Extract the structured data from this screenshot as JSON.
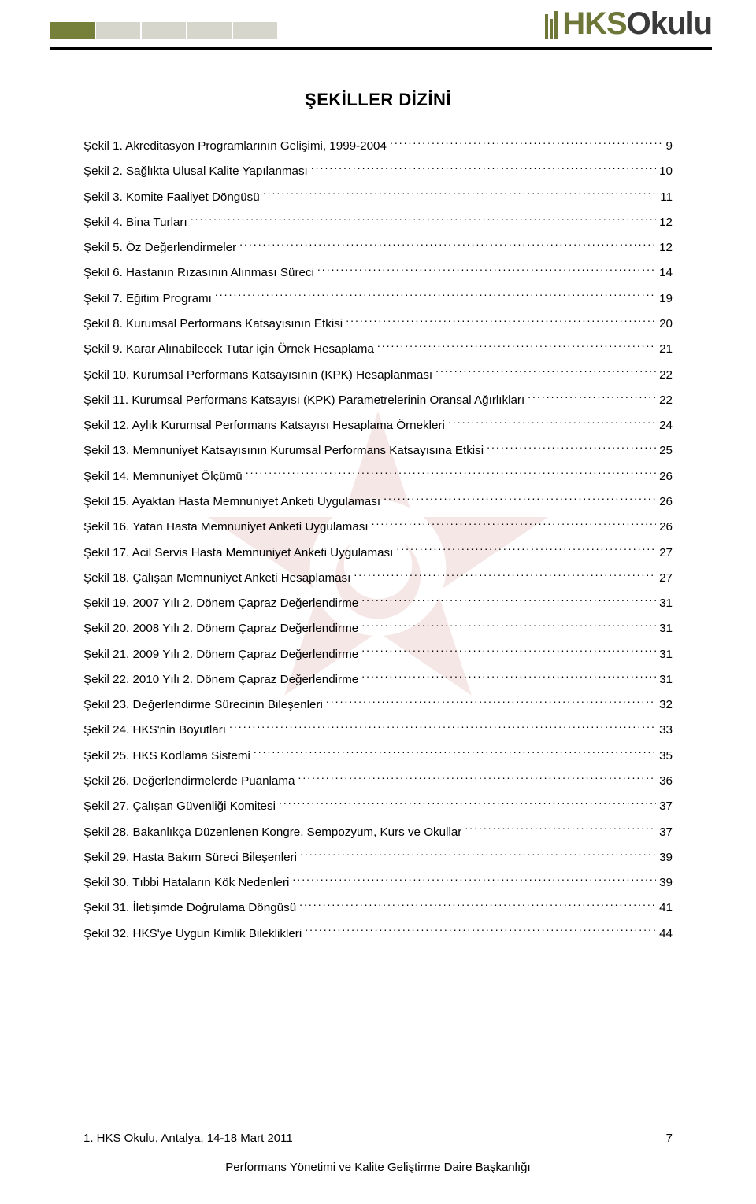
{
  "logo": {
    "hks": "HKS",
    "okulu": "Okulu"
  },
  "title": "ŞEKİLLER DİZİNİ",
  "toc": [
    {
      "label": "Şekil 1. Akreditasyon Programlarının Gelişimi, 1999-2004",
      "page": "9"
    },
    {
      "label": "Şekil 2. Sağlıkta Ulusal Kalite Yapılanması",
      "page": "10"
    },
    {
      "label": "Şekil 3. Komite Faaliyet Döngüsü",
      "page": "11"
    },
    {
      "label": "Şekil 4. Bina Turları",
      "page": "12"
    },
    {
      "label": "Şekil 5. Öz Değerlendirmeler",
      "page": "12"
    },
    {
      "label": "Şekil 6. Hastanın Rızasının Alınması Süreci",
      "page": "14"
    },
    {
      "label": "Şekil 7. Eğitim Programı",
      "page": "19"
    },
    {
      "label": "Şekil 8. Kurumsal Performans Katsayısının Etkisi",
      "page": "20"
    },
    {
      "label": "Şekil 9. Karar Alınabilecek Tutar için Örnek Hesaplama",
      "page": "21"
    },
    {
      "label": "Şekil 10. Kurumsal Performans Katsayısının (KPK) Hesaplanması",
      "page": "22"
    },
    {
      "label": "Şekil 11. Kurumsal Performans Katsayısı (KPK) Parametrelerinin Oransal Ağırlıkları",
      "page": "22"
    },
    {
      "label": "Şekil 12. Aylık Kurumsal Performans Katsayısı Hesaplama Örnekleri",
      "page": "24"
    },
    {
      "label": "Şekil 13. Memnuniyet Katsayısının Kurumsal Performans Katsayısına Etkisi",
      "page": "25"
    },
    {
      "label": "Şekil 14. Memnuniyet Ölçümü",
      "page": "26"
    },
    {
      "label": "Şekil 15. Ayaktan Hasta Memnuniyet Anketi Uygulaması",
      "page": "26"
    },
    {
      "label": "Şekil 16. Yatan Hasta Memnuniyet Anketi Uygulaması",
      "page": "26"
    },
    {
      "label": "Şekil 17. Acil Servis Hasta Memnuniyet Anketi Uygulaması",
      "page": "27"
    },
    {
      "label": "Şekil 18. Çalışan Memnuniyet Anketi Hesaplaması",
      "page": "27"
    },
    {
      "label": "Şekil 19. 2007 Yılı 2. Dönem Çapraz Değerlendirme",
      "page": "31"
    },
    {
      "label": "Şekil 20. 2008 Yılı 2. Dönem Çapraz Değerlendirme",
      "page": "31"
    },
    {
      "label": "Şekil 21. 2009 Yılı 2. Dönem Çapraz Değerlendirme",
      "page": "31"
    },
    {
      "label": "Şekil 22. 2010 Yılı 2. Dönem Çapraz Değerlendirme",
      "page": "31"
    },
    {
      "label": "Şekil 23. Değerlendirme Sürecinin Bileşenleri",
      "page": "32"
    },
    {
      "label": "Şekil 24. HKS'nin Boyutları",
      "page": "33"
    },
    {
      "label": "Şekil 25. HKS Kodlama Sistemi",
      "page": "35"
    },
    {
      "label": "Şekil 26. Değerlendirmelerde Puanlama",
      "page": "36"
    },
    {
      "label": "Şekil 27. Çalışan Güvenliği Komitesi",
      "page": "37"
    },
    {
      "label": "Şekil 28. Bakanlıkça Düzenlenen Kongre, Sempozyum, Kurs ve Okullar",
      "page": "37"
    },
    {
      "label": "Şekil 29. Hasta Bakım Süreci Bileşenleri",
      "page": "39"
    },
    {
      "label": "Şekil 30. Tıbbi Hataların Kök Nedenleri",
      "page": "39"
    },
    {
      "label": "Şekil 31. İletişimde Doğrulama Döngüsü",
      "page": "41"
    },
    {
      "label": "Şekil 32. HKS'ye Uygun Kimlik Bileklikleri",
      "page": "44"
    }
  ],
  "footer": {
    "event": "1. HKS Okulu, Antalya, 14-18 Mart 2011",
    "pagenum": "7",
    "dept": "Performans Yönetimi ve Kalite Geliştirme Daire Başkanlığı"
  },
  "colors": {
    "olive": "#77803a",
    "lightBlock": "#d6d6cc",
    "watermark": "#b22222"
  }
}
